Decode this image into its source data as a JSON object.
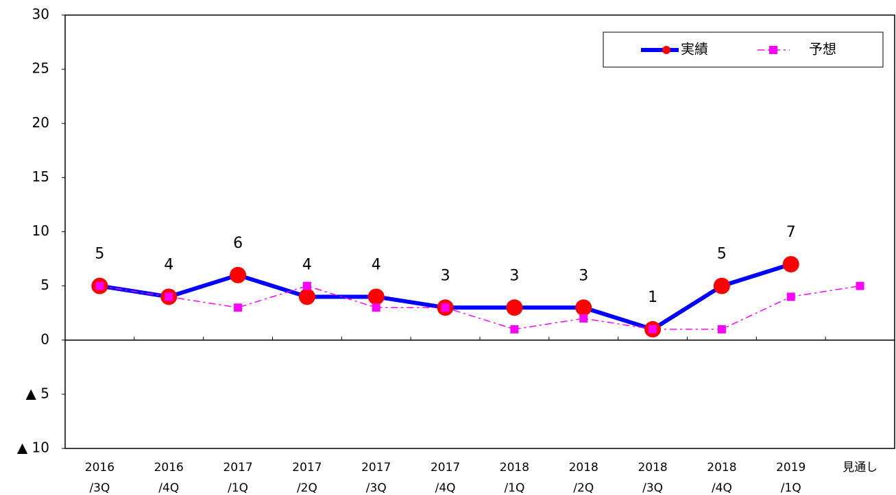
{
  "chart_data": {
    "type": "line",
    "categories": [
      "2016\n/3Q",
      "2016\n/4Q",
      "2017\n/1Q",
      "2017\n/2Q",
      "2017\n/3Q",
      "2017\n/4Q",
      "2018\n/1Q",
      "2018\n/2Q",
      "2018\n/3Q",
      "2018\n/4Q",
      "2019\n/1Q",
      "見通し"
    ],
    "series": [
      {
        "name": "実績",
        "color": "#0000ff",
        "marker_color": "#ff0000",
        "values": [
          5,
          4,
          6,
          4,
          4,
          3,
          3,
          3,
          1,
          5,
          7,
          null
        ]
      },
      {
        "name": "予想",
        "color": "#ff00ff",
        "values": [
          5,
          4,
          3,
          5,
          3,
          3,
          1,
          2,
          1,
          1,
          4,
          5
        ]
      }
    ],
    "ylim": [
      -10,
      30
    ],
    "yticks": [
      {
        "value": -10,
        "label": "▲ 10"
      },
      {
        "value": -5,
        "label": "▲ 5"
      },
      0,
      5,
      10,
      15,
      20,
      25,
      30
    ],
    "grid": false,
    "legend": "upper right"
  }
}
